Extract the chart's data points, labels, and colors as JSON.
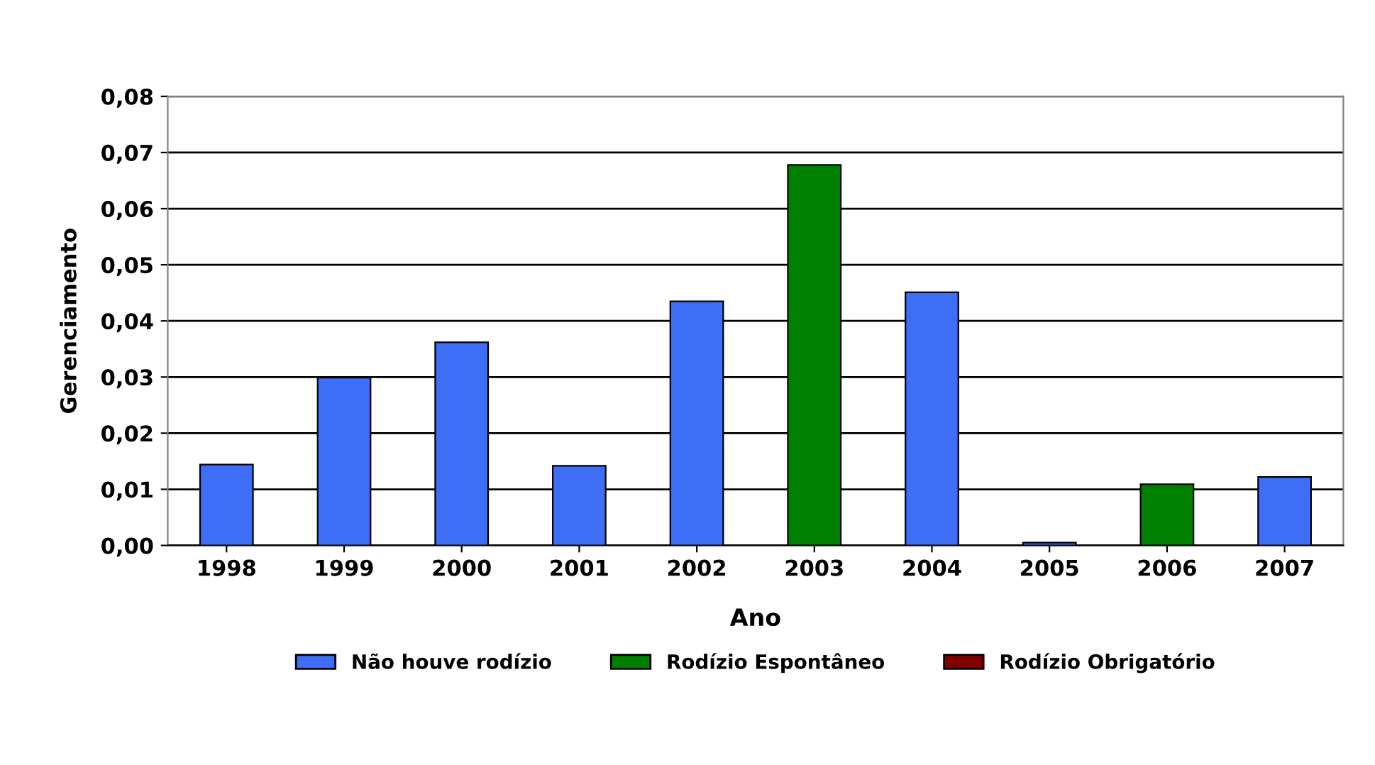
{
  "chart_data": {
    "type": "bar",
    "xlabel": "Ano",
    "ylabel": "Gerenciamento",
    "categories": [
      "1998",
      "1999",
      "2000",
      "2001",
      "2002",
      "2003",
      "2004",
      "2005",
      "2006",
      "2007"
    ],
    "series": [
      {
        "name": "Não houve rodízio",
        "color": "#3d6ef5",
        "values": [
          0.0144,
          0.0299,
          0.0362,
          0.0142,
          0.0435,
          null,
          0.0451,
          0.0005,
          null,
          0.0122
        ]
      },
      {
        "name": "Rodízio Espontâneo",
        "color": "#008000",
        "values": [
          null,
          null,
          null,
          null,
          null,
          0.0678,
          null,
          null,
          0.0109,
          null
        ]
      },
      {
        "name": "Rodízio Obrigatório",
        "color": "#800000",
        "values": [
          null,
          null,
          null,
          null,
          null,
          null,
          null,
          null,
          null,
          null
        ]
      }
    ],
    "ylim": [
      0,
      0.08
    ],
    "yticks": [
      {
        "value": 0,
        "label": "0,00"
      },
      {
        "value": 0.01,
        "label": "0,01"
      },
      {
        "value": 0.02,
        "label": "0,02"
      },
      {
        "value": 0.03,
        "label": "0,03"
      },
      {
        "value": 0.04,
        "label": "0,04"
      },
      {
        "value": 0.05,
        "label": "0,05"
      },
      {
        "value": 0.06,
        "label": "0,06"
      },
      {
        "value": 0.07,
        "label": "0,07"
      },
      {
        "value": 0.08,
        "label": "0,08"
      }
    ],
    "grid": "y",
    "legend": "bottom"
  }
}
